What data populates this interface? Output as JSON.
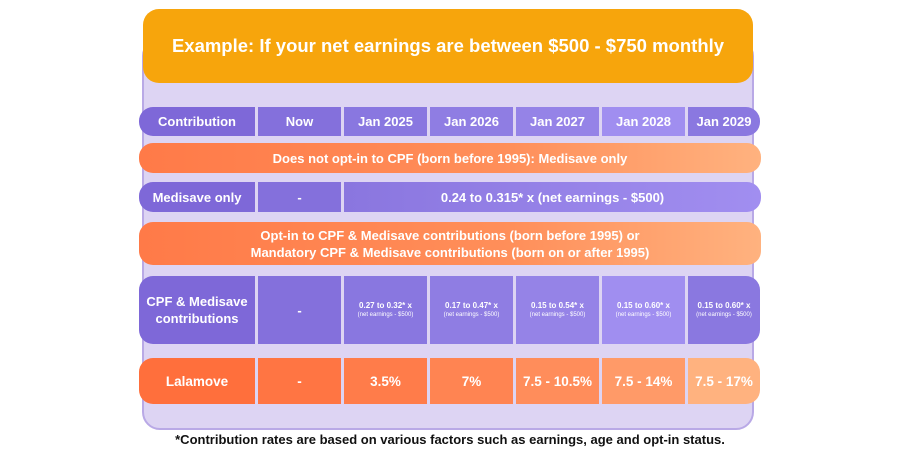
{
  "banner": {
    "title": "Example: If your net earnings are between $500 - $750 monthly"
  },
  "header": {
    "label": "Contribution",
    "columns": [
      "Now",
      "Jan 2025",
      "Jan 2026",
      "Jan 2027",
      "Jan 2028",
      "Jan 2029"
    ]
  },
  "section1": {
    "title": "Does not opt-in to CPF (born before 1995): Medisave only"
  },
  "medisave": {
    "label": "Medisave only",
    "now": "-",
    "formula": "0.24 to 0.315* x (net earnings - $500)"
  },
  "section2": {
    "line1": "Opt-in to CPF & Medisave contributions (born before 1995) or",
    "line2": "Mandatory CPF & Medisave contributions (born on or after 1995)"
  },
  "cpf": {
    "label_line1": "CPF & Medisave",
    "label_line2": "contributions",
    "now": "-",
    "rates": [
      {
        "main": "0.27 to 0.32* x",
        "sub": "(net earnings - $500)"
      },
      {
        "main": "0.17 to 0.47* x",
        "sub": "(net earnings - $500)"
      },
      {
        "main": "0.15 to 0.54* x",
        "sub": "(net earnings - $500)"
      },
      {
        "main": "0.15 to 0.60* x",
        "sub": "(net earnings - $500)"
      },
      {
        "main": "0.15 to 0.60* x",
        "sub": "(net earnings - $500)"
      }
    ]
  },
  "lalamove": {
    "label": "Lalamove",
    "now": "-",
    "values": [
      "3.5%",
      "7%",
      "7.5 - 10.5%",
      "7.5 - 14%",
      "7.5 - 17%"
    ]
  },
  "footnote": "*Contribution rates are based on various factors such as earnings, age and opt-in status.",
  "colors": {
    "banner": "#f7a50c",
    "purple_dark": "#7e68d8",
    "purple_light": "#a18ef0",
    "orange_dark": "#ff6f3c",
    "orange_light": "#ffb27f",
    "card_bg": "#ddd4f3"
  }
}
